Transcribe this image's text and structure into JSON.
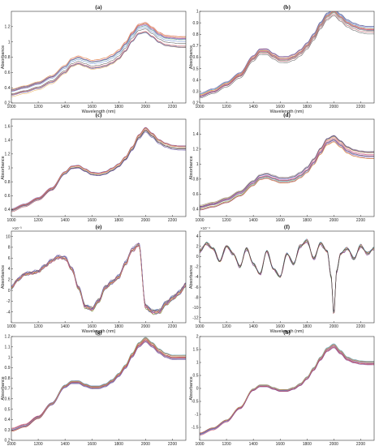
{
  "colors": [
    "#4e79c9",
    "#d1495b",
    "#e8a33d",
    "#7a4fa0",
    "#5aa05a",
    "#4ab3c9",
    "#a6333f",
    "#3c3c3c",
    "#8c8c8c",
    "#c77cbf"
  ],
  "chart_data": [
    {
      "type": "line",
      "title": "(a)",
      "xlabel": "Wavelength (nm)",
      "ylabel": "Absorbance",
      "xlim": [
        1000,
        2300
      ],
      "ylim": [
        0.2,
        1.4
      ],
      "xticks": [
        1000,
        1200,
        1400,
        1600,
        1800,
        2000,
        2200
      ],
      "yticks": [
        0.2,
        0.4,
        0.6,
        0.8,
        1,
        1.2
      ],
      "ytick_labels": [
        "0.2",
        "0.4",
        "0.6",
        "0.8",
        "1",
        "1.2"
      ],
      "exponent": "",
      "x": [
        1000,
        1100,
        1200,
        1300,
        1400,
        1450,
        1500,
        1550,
        1600,
        1650,
        1700,
        1750,
        1800,
        1850,
        1900,
        1950,
        2000,
        2050,
        2100,
        2150,
        2200,
        2250,
        2300
      ],
      "center": [
        0.33,
        0.37,
        0.42,
        0.5,
        0.63,
        0.72,
        0.75,
        0.72,
        0.69,
        0.7,
        0.72,
        0.76,
        0.82,
        0.92,
        1.05,
        1.15,
        1.17,
        1.11,
        1.04,
        1.0,
        0.99,
        0.98,
        0.98
      ],
      "spread": 0.09,
      "n_curves": 14
    },
    {
      "type": "line",
      "title": "(b)",
      "xlabel": "Wavelength (nm)",
      "ylabel": "Absorbance",
      "xlim": [
        1000,
        2300
      ],
      "ylim": [
        0.2,
        1
      ],
      "xticks": [
        1000,
        1200,
        1400,
        1600,
        1800,
        2000,
        2200
      ],
      "yticks": [
        0.2,
        0.3,
        0.4,
        0.5,
        0.6,
        0.7,
        0.8,
        0.9,
        1
      ],
      "ytick_labels": [
        "0.2",
        "0.3",
        "0.4",
        "0.5",
        "0.6",
        "0.7",
        "0.8",
        "0.9",
        "1"
      ],
      "exponent": "",
      "x": [
        1000,
        1100,
        1200,
        1300,
        1400,
        1450,
        1500,
        1550,
        1600,
        1650,
        1700,
        1750,
        1800,
        1850,
        1900,
        1950,
        2000,
        2050,
        2100,
        2150,
        2200,
        2250,
        2300
      ],
      "center": [
        0.26,
        0.3,
        0.36,
        0.44,
        0.59,
        0.65,
        0.65,
        0.61,
        0.58,
        0.58,
        0.6,
        0.64,
        0.7,
        0.78,
        0.88,
        0.96,
        1.0,
        0.95,
        0.9,
        0.87,
        0.85,
        0.84,
        0.84
      ],
      "spread": 0.035,
      "n_curves": 14
    },
    {
      "type": "line",
      "title": "(c)",
      "xlabel": "",
      "ylabel": "Absorbance",
      "xlim": [
        1000,
        2300
      ],
      "ylim": [
        0.3,
        1.7
      ],
      "xticks": [
        1000,
        1200,
        1400,
        1600,
        1800,
        2000,
        2200
      ],
      "yticks": [
        0.4,
        0.6,
        0.8,
        1,
        1.2,
        1.4,
        1.6
      ],
      "ytick_labels": [
        "0.4",
        "0.6",
        "0.8",
        "1",
        "1.2",
        "1.4",
        "1.6"
      ],
      "exponent": "",
      "x": [
        1000,
        1100,
        1200,
        1300,
        1400,
        1450,
        1500,
        1550,
        1600,
        1650,
        1700,
        1750,
        1800,
        1850,
        1900,
        1950,
        2000,
        2050,
        2100,
        2150,
        2200,
        2250,
        2300
      ],
      "center": [
        0.4,
        0.47,
        0.56,
        0.7,
        0.93,
        1.01,
        1.02,
        0.97,
        0.92,
        0.91,
        0.93,
        0.98,
        1.04,
        1.14,
        1.28,
        1.45,
        1.55,
        1.47,
        1.38,
        1.33,
        1.3,
        1.29,
        1.29
      ],
      "spread": 0.03,
      "n_curves": 14
    },
    {
      "type": "line",
      "title": "(d)",
      "xlabel": "",
      "ylabel": "Absorbance",
      "xlim": [
        1000,
        2300
      ],
      "ylim": [
        0.3,
        1.6
      ],
      "xticks": [
        1000,
        1200,
        1400,
        1600,
        1800,
        2000,
        2200
      ],
      "yticks": [
        0.4,
        0.6,
        0.8,
        1,
        1.2,
        1.4
      ],
      "ytick_labels": [
        "0.4",
        "0.6",
        "0.8",
        "1",
        "1.2",
        "1.4"
      ],
      "exponent": "",
      "x": [
        1000,
        1100,
        1200,
        1300,
        1400,
        1450,
        1500,
        1550,
        1600,
        1650,
        1700,
        1750,
        1800,
        1850,
        1900,
        1950,
        2000,
        2050,
        2100,
        2150,
        2200,
        2250,
        2300
      ],
      "center": [
        0.42,
        0.46,
        0.52,
        0.61,
        0.75,
        0.83,
        0.85,
        0.82,
        0.79,
        0.79,
        0.81,
        0.86,
        0.93,
        1.04,
        1.18,
        1.31,
        1.35,
        1.28,
        1.2,
        1.16,
        1.14,
        1.13,
        1.13
      ],
      "spread": 0.07,
      "n_curves": 14
    },
    {
      "type": "line",
      "title": "(e)",
      "xlabel": "Wavelength (nm)",
      "ylabel": "Absorbance",
      "xlim": [
        1000,
        2300
      ],
      "ylim": [
        -6,
        11
      ],
      "xticks": [
        1000,
        1200,
        1400,
        1600,
        1800,
        2000,
        2200
      ],
      "yticks": [
        -4,
        -2,
        0,
        2,
        4,
        6,
        8,
        10
      ],
      "ytick_labels": [
        "-4",
        "-2",
        "0",
        "2",
        "4",
        "6",
        "8",
        "10"
      ],
      "exponent": "×10⁻³",
      "x": [
        1000,
        1050,
        1100,
        1150,
        1200,
        1250,
        1300,
        1350,
        1400,
        1450,
        1500,
        1550,
        1600,
        1650,
        1700,
        1750,
        1800,
        1850,
        1900,
        1950,
        2000,
        2050,
        2100,
        2150,
        2200,
        2250,
        2300
      ],
      "center": [
        0.5,
        2.0,
        3.0,
        3.2,
        3.5,
        4.5,
        5.5,
        6.2,
        6.0,
        4.0,
        0.5,
        -3.0,
        -3.5,
        -2.0,
        0.5,
        1.5,
        2.5,
        5.0,
        7.5,
        8.5,
        -3.0,
        -4.0,
        -4.0,
        -2.5,
        -1.5,
        -0.5,
        1.0
      ],
      "spread": 0.45,
      "n_curves": 14
    },
    {
      "type": "line",
      "title": "(f)",
      "xlabel": "Wavelength (nm)",
      "ylabel": "Absorbance",
      "xlim": [
        1000,
        2300
      ],
      "ylim": [
        -13,
        5
      ],
      "xticks": [
        1000,
        1200,
        1400,
        1600,
        1800,
        2000,
        2200
      ],
      "yticks": [
        -12,
        -10,
        -8,
        -6,
        -4,
        -2,
        0,
        2,
        4
      ],
      "ytick_labels": [
        "-12",
        "-10",
        "-8",
        "-6",
        "-4",
        "-2",
        "0",
        "2",
        "4"
      ],
      "exponent": "×10⁻⁴",
      "x": [
        1000,
        1050,
        1100,
        1150,
        1200,
        1250,
        1300,
        1350,
        1400,
        1450,
        1500,
        1550,
        1600,
        1650,
        1700,
        1750,
        1800,
        1850,
        1900,
        1950,
        1980,
        2000,
        2020,
        2050,
        2100,
        2150,
        2200,
        2250,
        2300
      ],
      "center": [
        1.0,
        2.5,
        1.5,
        -1.0,
        2.0,
        0.5,
        -2.0,
        1.5,
        -1.5,
        -3.5,
        1.0,
        -2.5,
        -4.0,
        0.5,
        -1.5,
        2.0,
        3.0,
        -0.5,
        2.5,
        1.0,
        -4.0,
        -11.5,
        -3.0,
        0.5,
        1.5,
        -0.5,
        2.0,
        0.5,
        1.5
      ],
      "spread": 0.2,
      "n_curves": 8
    },
    {
      "type": "line",
      "title": "(g)",
      "xlabel": "Wavelength (nm)",
      "ylabel": "Absorbance",
      "xlim": [
        1000,
        2300
      ],
      "ylim": [
        0.2,
        1.2
      ],
      "xticks": [
        1000,
        1200,
        1400,
        1600,
        1800,
        2000,
        2200
      ],
      "yticks": [
        0.2,
        0.3,
        0.4,
        0.5,
        0.6,
        0.7,
        0.8,
        0.9,
        1,
        1.1,
        1.2
      ],
      "ytick_labels": [
        "0.2",
        "0.3",
        "0.4",
        "0.5",
        "0.6",
        "0.7",
        "0.8",
        "0.9",
        "1",
        "1.1",
        "1.2"
      ],
      "exponent": "",
      "x": [
        1000,
        1100,
        1200,
        1300,
        1400,
        1450,
        1500,
        1550,
        1600,
        1650,
        1700,
        1750,
        1800,
        1850,
        1900,
        1950,
        2000,
        2050,
        2100,
        2150,
        2200,
        2250,
        2300
      ],
      "center": [
        0.3,
        0.34,
        0.42,
        0.55,
        0.72,
        0.76,
        0.76,
        0.73,
        0.71,
        0.71,
        0.73,
        0.77,
        0.83,
        0.91,
        1.02,
        1.12,
        1.17,
        1.12,
        1.06,
        1.02,
        1.0,
        1.0,
        1.0
      ],
      "spread": 0.02,
      "n_curves": 14
    },
    {
      "type": "line",
      "title": "(h)",
      "xlabel": "Wavelength (nm)",
      "ylabel": "Absorbance",
      "xlim": [
        1000,
        2300
      ],
      "ylim": [
        -2,
        2
      ],
      "xticks": [
        1000,
        1200,
        1400,
        1600,
        1800,
        2000,
        2200
      ],
      "yticks": [
        -1.5,
        -1,
        -0.5,
        0,
        0.5,
        1,
        1.5,
        2
      ],
      "ytick_labels": [
        "-1.5",
        "-1",
        "-0.5",
        "0",
        "0.5",
        "1",
        "1.5",
        "2"
      ],
      "exponent": "",
      "x": [
        1000,
        1100,
        1200,
        1300,
        1400,
        1450,
        1500,
        1550,
        1600,
        1650,
        1700,
        1750,
        1800,
        1850,
        1900,
        1950,
        2000,
        2050,
        2100,
        2150,
        2200,
        2250,
        2300
      ],
      "center": [
        -1.75,
        -1.55,
        -1.25,
        -0.75,
        -0.05,
        0.1,
        0.1,
        0.0,
        -0.08,
        -0.08,
        0.0,
        0.15,
        0.4,
        0.75,
        1.15,
        1.5,
        1.65,
        1.4,
        1.15,
        1.05,
        1.0,
        0.98,
        0.98
      ],
      "spread": 0.05,
      "n_curves": 14
    }
  ]
}
